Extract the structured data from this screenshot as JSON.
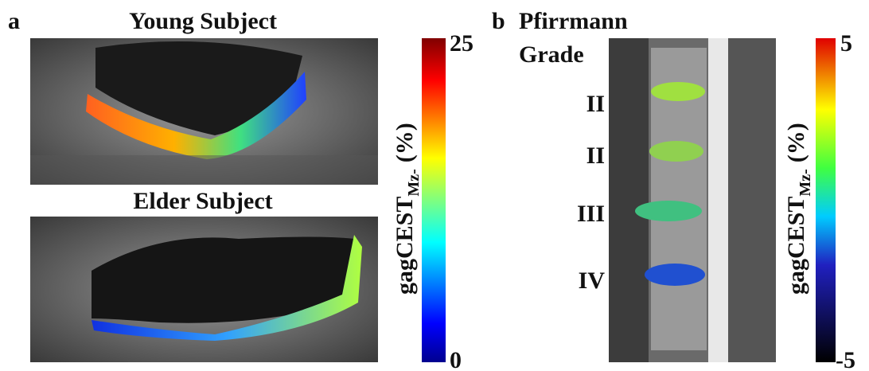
{
  "panel_a": {
    "label": "a",
    "young_title": "Young Subject",
    "elder_title": "Elder Subject",
    "colorbar": {
      "max": "25",
      "min": "0",
      "label": {
        "main": "gagCEST",
        "sub": "Mz-",
        "unit": "(%)"
      }
    }
  },
  "panel_b": {
    "label": "b",
    "heading": [
      "Pfirrmann",
      "Grade"
    ],
    "grades": [
      "II",
      "II",
      "III",
      "IV"
    ],
    "colorbar": {
      "max": "5",
      "min": "-5",
      "label": {
        "main": "gagCEST",
        "sub": "Mz-",
        "unit": "(%)"
      }
    }
  }
}
